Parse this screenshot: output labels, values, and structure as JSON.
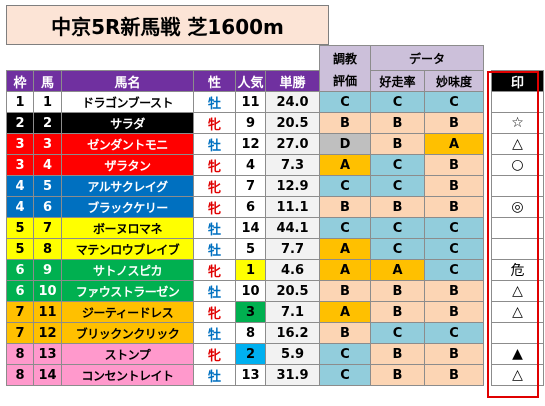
{
  "title": "中京5R新馬戦 芝1600m",
  "colors": {
    "header_purple": "#7030a0",
    "header_lavender": "#ccc0da",
    "eval_blue": "#92cddc",
    "eval_orange": "#fcd5b4",
    "eval_yellow": "#ffc000",
    "eval_gray": "#bfbfbf",
    "mark_frame": "#e00000"
  },
  "headers": {
    "eval_top": "調教",
    "eval_bottom": "評価",
    "data_group": "データ",
    "waku": "枠",
    "uma": "馬",
    "name": "馬名",
    "sex": "性",
    "ninki": "人気",
    "tansho": "単勝",
    "kosoritsu": "好走率",
    "mimido": "妙味度",
    "mark": "印"
  },
  "rows": [
    {
      "waku": "1",
      "uma": "1",
      "name": "ドラゴンブースト",
      "sex": "牡",
      "ninki": "11",
      "odds": "24.0",
      "eval": "C",
      "kosoritsu": "C",
      "mimido": "C",
      "mark": ""
    },
    {
      "waku": "2",
      "uma": "2",
      "name": "サラダ",
      "sex": "牝",
      "ninki": "9",
      "odds": "20.5",
      "eval": "B",
      "kosoritsu": "B",
      "mimido": "B",
      "mark": "☆"
    },
    {
      "waku": "3",
      "uma": "3",
      "name": "ゼンダントモニ",
      "sex": "牡",
      "ninki": "12",
      "odds": "27.0",
      "eval": "D",
      "kosoritsu": "B",
      "mimido": "A",
      "mark": "△"
    },
    {
      "waku": "3",
      "uma": "4",
      "name": "ザラタン",
      "sex": "牝",
      "ninki": "4",
      "odds": "7.3",
      "eval": "A",
      "kosoritsu": "C",
      "mimido": "B",
      "mark": "○"
    },
    {
      "waku": "4",
      "uma": "5",
      "name": "アルサクレイグ",
      "sex": "牝",
      "ninki": "7",
      "odds": "12.9",
      "eval": "C",
      "kosoritsu": "C",
      "mimido": "B",
      "mark": ""
    },
    {
      "waku": "4",
      "uma": "6",
      "name": "ブラックケリー",
      "sex": "牝",
      "ninki": "6",
      "odds": "11.1",
      "eval": "B",
      "kosoritsu": "B",
      "mimido": "B",
      "mark": "◎"
    },
    {
      "waku": "5",
      "uma": "7",
      "name": "ボーヌロマネ",
      "sex": "牡",
      "ninki": "14",
      "odds": "44.1",
      "eval": "C",
      "kosoritsu": "C",
      "mimido": "C",
      "mark": ""
    },
    {
      "waku": "5",
      "uma": "8",
      "name": "マテンロウブレイブ",
      "sex": "牡",
      "ninki": "5",
      "odds": "7.7",
      "eval": "A",
      "kosoritsu": "C",
      "mimido": "C",
      "mark": ""
    },
    {
      "waku": "6",
      "uma": "9",
      "name": "サトノスピカ",
      "sex": "牝",
      "ninki": "1",
      "odds": "4.6",
      "eval": "A",
      "kosoritsu": "A",
      "mimido": "C",
      "mark": "危"
    },
    {
      "waku": "6",
      "uma": "10",
      "name": "ファウストラーゼン",
      "sex": "牡",
      "ninki": "10",
      "odds": "20.5",
      "eval": "B",
      "kosoritsu": "B",
      "mimido": "B",
      "mark": "△"
    },
    {
      "waku": "7",
      "uma": "11",
      "name": "ジーティードレス",
      "sex": "牝",
      "ninki": "3",
      "odds": "7.1",
      "eval": "A",
      "kosoritsu": "B",
      "mimido": "B",
      "mark": "△"
    },
    {
      "waku": "7",
      "uma": "12",
      "name": "ブリックンクリック",
      "sex": "牡",
      "ninki": "8",
      "odds": "16.2",
      "eval": "B",
      "kosoritsu": "C",
      "mimido": "C",
      "mark": ""
    },
    {
      "waku": "8",
      "uma": "13",
      "name": "ストンプ",
      "sex": "牝",
      "ninki": "2",
      "odds": "5.9",
      "eval": "C",
      "kosoritsu": "B",
      "mimido": "B",
      "mark": "▲"
    },
    {
      "waku": "8",
      "uma": "14",
      "name": "コンセントレイト",
      "sex": "牡",
      "ninki": "13",
      "odds": "31.9",
      "eval": "C",
      "kosoritsu": "B",
      "mimido": "B",
      "mark": "△"
    }
  ]
}
